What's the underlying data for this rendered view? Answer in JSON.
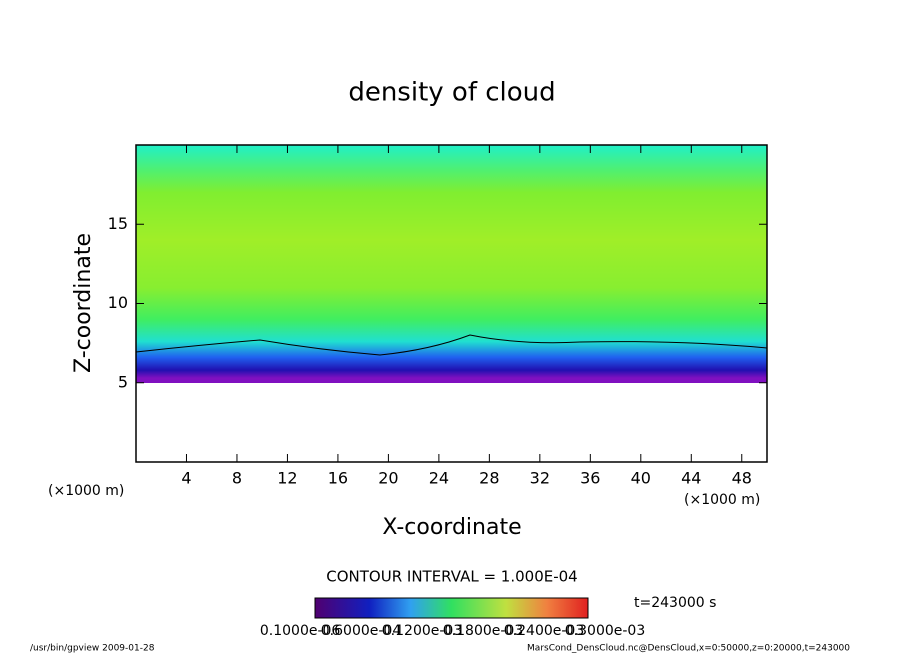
{
  "chart_data": {
    "type": "contour",
    "title": "density of cloud",
    "xlabel": "X-coordinate",
    "ylabel": "Z-coordinate",
    "axis_unit": "(×1000 m)",
    "xlim": [
      0,
      50
    ],
    "xticks": [
      4,
      8,
      12,
      16,
      20,
      24,
      28,
      32,
      36,
      40,
      44,
      48
    ],
    "ylim": [
      0,
      20
    ],
    "yticks": [
      5,
      10,
      15
    ],
    "contour_interval": "CONTOUR INTERVAL = 1.000E-04",
    "time": "t=243000 s",
    "colorbar": {
      "lim": [
        0,
        0.0003
      ],
      "ticks": [
        {
          "value": 1e-07,
          "label": "0.1000e-06"
        },
        {
          "value": 6e-05,
          "label": "0.6000e-04"
        },
        {
          "value": 0.00012,
          "label": "0.1200e-03"
        },
        {
          "value": 0.00018,
          "label": "0.1800e-03"
        },
        {
          "value": 0.00024,
          "label": "0.2400e-03"
        },
        {
          "value": 0.0003,
          "label": "0.3000e-03"
        }
      ]
    },
    "footer_left": "/usr/bin/gpview  2009-01-28",
    "footer_right": "MarsCond_DensCloud.nc@DensCloud,x=0:50000,z=0:20000,t=243000"
  }
}
